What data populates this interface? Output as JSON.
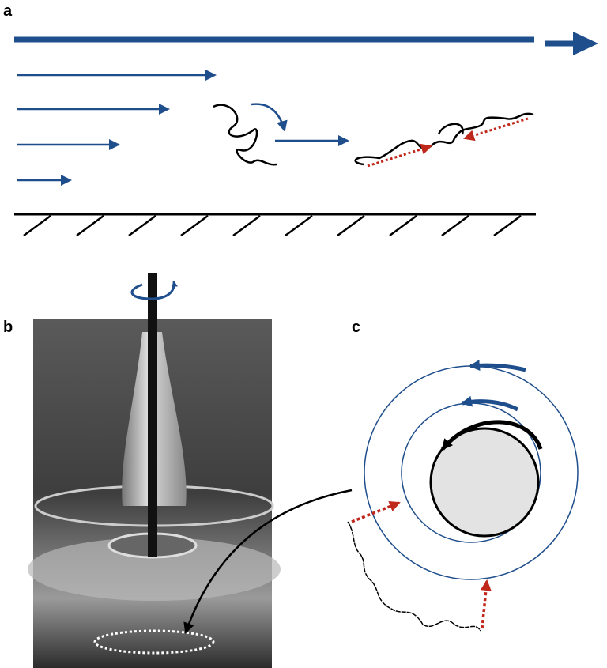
{
  "panels": [
    {
      "label": "a"
    },
    {
      "label": "b"
    },
    {
      "label": "c"
    }
  ]
}
